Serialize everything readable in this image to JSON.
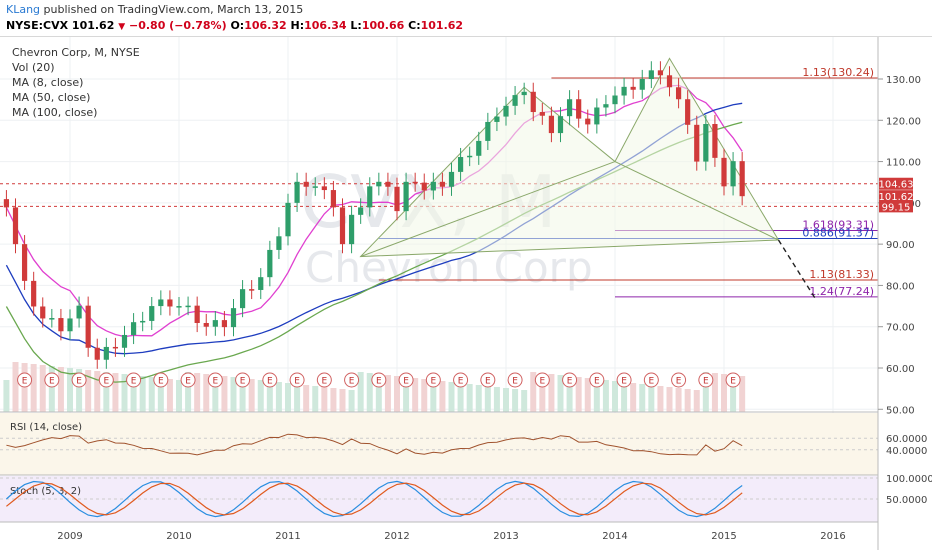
{
  "header": {
    "author": "KLang",
    "published": "published on TradingView.com, March 13, 2015",
    "symbol": "NYSE:CVX",
    "last": "101.62",
    "change": "−0.80 (−0.78%)",
    "ohlc": {
      "o_label": "O:",
      "o": "106.32",
      "h_label": "H:",
      "h": "106.34",
      "l_label": "L:",
      "l": "100.66",
      "c_label": "C:",
      "c": "101.62"
    }
  },
  "legend": {
    "title": "Chevron Corp, M, NYSE",
    "items": [
      "Vol (20)",
      "MA (8, close)",
      "MA (50, close)",
      "MA (100, close)"
    ]
  },
  "watermark": {
    "ticker": "CVX, M",
    "name": "Chevron Corp"
  },
  "colors": {
    "up": "#2e9e6a",
    "down": "#d03a3a",
    "ma8": "#e040d0",
    "ma50": "#1e3dbf",
    "ma100": "#6aa84f",
    "rsi": "#a0522d",
    "stoch_k": "#2a8ee0",
    "stoch_d": "#e05a1e",
    "fib_red": "#c0392b",
    "fib_purple": "#8e24aa",
    "fib_blue": "#1e3dbf"
  },
  "chart_data": {
    "type": "candlestick",
    "title": "Chevron Corp, M, NYSE",
    "x_axis": {
      "ticks": [
        "2009",
        "2010",
        "2011",
        "2012",
        "2013",
        "2014",
        "2015",
        "2016"
      ]
    },
    "y_axis": {
      "ticks": [
        50,
        60,
        70,
        80,
        90,
        100,
        110,
        120,
        130
      ],
      "range": [
        50,
        138
      ]
    },
    "price_labels": [
      {
        "value": 104.63,
        "text": "104.63",
        "color": "#d03a3a"
      },
      {
        "value": 101.62,
        "text": "101.62",
        "color": "#d03a3a"
      },
      {
        "value": 99.15,
        "text": "99.15",
        "color": "#d03a3a"
      }
    ],
    "hlines": [
      {
        "value": 104.63,
        "style": "dashed",
        "color": "#d03a3a"
      },
      {
        "value": 99.15,
        "style": "dashed",
        "color": "#d03a3a"
      }
    ],
    "fib_levels": [
      {
        "value": 130.24,
        "text": "1.13(130.24)",
        "color": "#c0392b",
        "x_start": "2013-06"
      },
      {
        "value": 93.31,
        "text": "1.618(93.31)",
        "color": "#8e24aa",
        "x_start": "2014-01"
      },
      {
        "value": 91.37,
        "text": "0.886(91.37)",
        "color": "#1e3dbf",
        "x_start": "2011-11"
      },
      {
        "value": 81.33,
        "text": "1.13(81.33)",
        "color": "#c0392b",
        "x_start": "2011-11"
      },
      {
        "value": 77.24,
        "text": "1.24(77.24)",
        "color": "#8e24aa",
        "x_start": "2014-01"
      }
    ],
    "earnings_marker": "E",
    "rsi": {
      "label": "RSI (14, close)",
      "ticks": [
        "60.0000",
        "40.0000"
      ]
    },
    "stoch": {
      "label": "Stoch (5, 3, 2)",
      "ticks": [
        "100.0000",
        "50.0000"
      ]
    }
  }
}
